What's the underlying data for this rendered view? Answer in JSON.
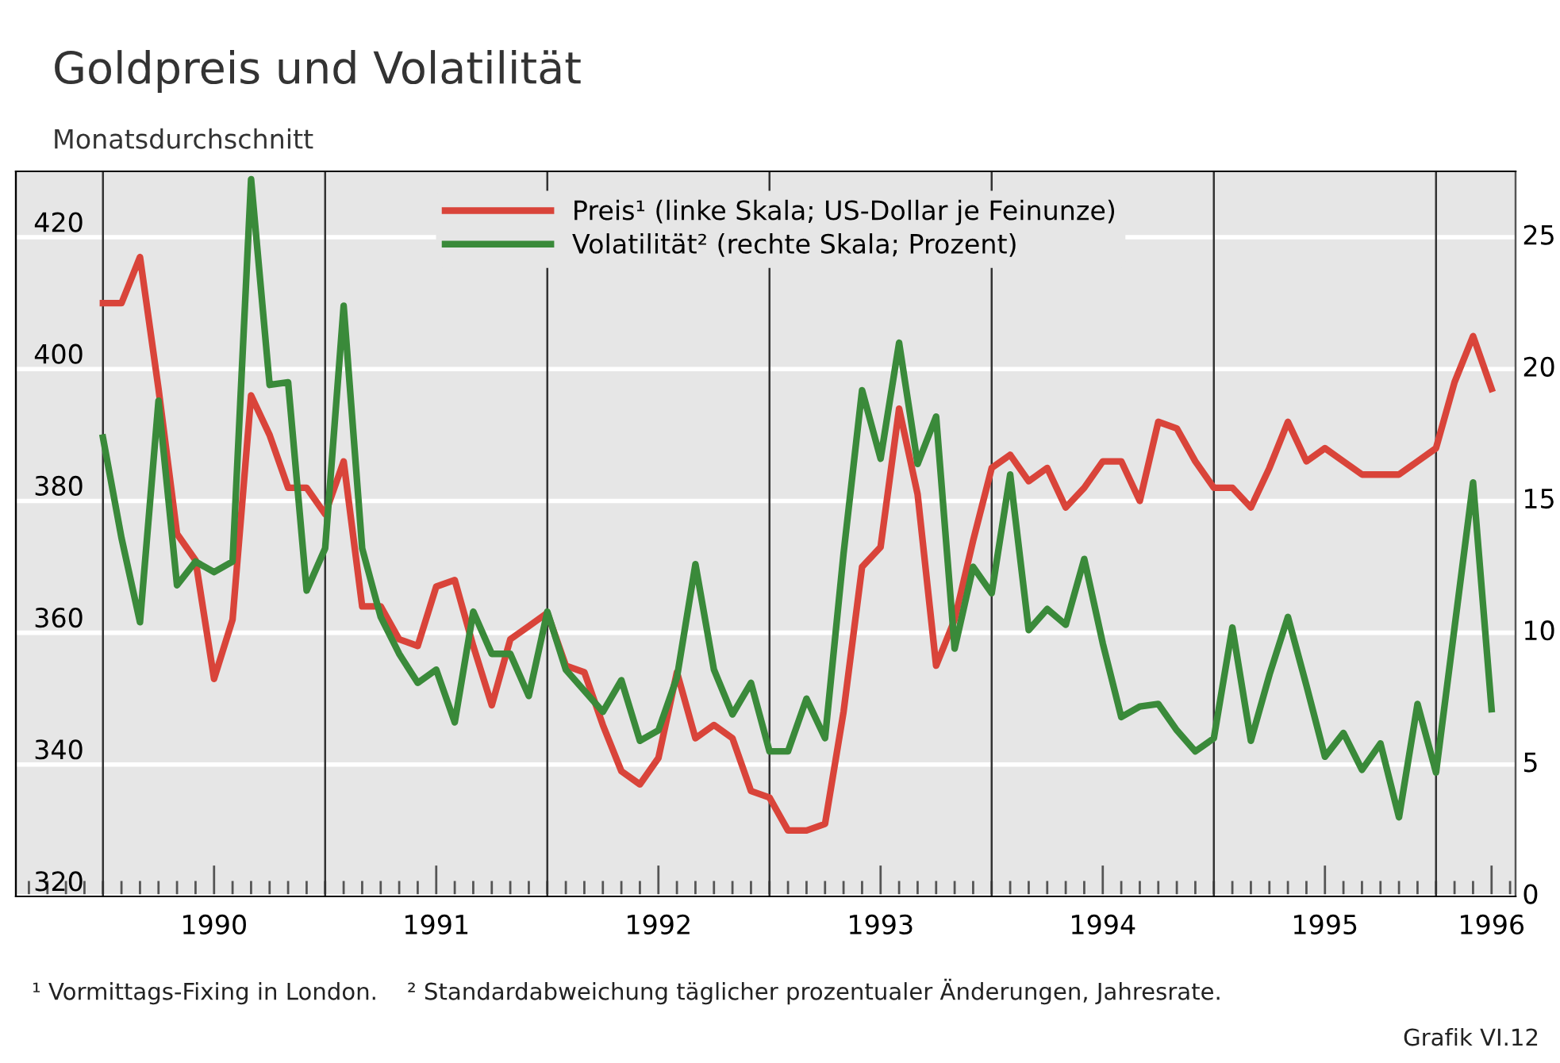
{
  "chart_data": {
    "type": "line",
    "title": "Goldpreis und Volatilität",
    "subtitle": "Monatsdurchschnitt",
    "x": [
      "1990-01",
      "1990-02",
      "1990-03",
      "1990-04",
      "1990-05",
      "1990-06",
      "1990-07",
      "1990-08",
      "1990-09",
      "1990-10",
      "1990-11",
      "1990-12",
      "1991-01",
      "1991-02",
      "1991-03",
      "1991-04",
      "1991-05",
      "1991-06",
      "1991-07",
      "1991-08",
      "1991-09",
      "1991-10",
      "1991-11",
      "1991-12",
      "1992-01",
      "1992-02",
      "1992-03",
      "1992-04",
      "1992-05",
      "1992-06",
      "1992-07",
      "1992-08",
      "1992-09",
      "1992-10",
      "1992-11",
      "1992-12",
      "1993-01",
      "1993-02",
      "1993-03",
      "1993-04",
      "1993-05",
      "1993-06",
      "1993-07",
      "1993-08",
      "1993-09",
      "1993-10",
      "1993-11",
      "1993-12",
      "1994-01",
      "1994-02",
      "1994-03",
      "1994-04",
      "1994-05",
      "1994-06",
      "1994-07",
      "1994-08",
      "1994-09",
      "1994-10",
      "1994-11",
      "1994-12",
      "1995-01",
      "1995-02",
      "1995-03",
      "1995-04",
      "1995-05",
      "1995-06",
      "1995-07",
      "1995-08",
      "1995-09",
      "1995-10",
      "1995-11",
      "1995-12",
      "1996-01",
      "1996-02",
      "1996-03",
      "1996-04"
    ],
    "series": [
      {
        "name": "Preis¹ (linke Skala; US-Dollar je Feinunze)",
        "color": "#d9443a",
        "values": [
          410,
          410,
          417,
          397,
          375,
          371,
          353,
          362,
          396,
          390,
          382,
          382,
          378,
          386,
          364,
          364,
          359,
          358,
          367,
          368,
          358,
          349,
          359,
          361,
          363,
          355,
          354,
          346,
          339,
          337,
          341,
          354,
          344,
          346,
          344,
          336,
          335,
          330,
          330,
          331,
          348,
          370,
          373,
          394,
          381,
          355,
          362,
          374,
          385,
          387,
          383,
          385,
          379,
          382,
          386,
          386,
          380,
          392,
          391,
          386,
          382,
          382,
          379,
          385,
          392,
          386,
          388,
          386,
          384,
          384,
          384,
          386,
          388,
          398,
          405,
          397
        ]
      },
      {
        "name": "Volatilität² (rechte Skala; Prozent)",
        "color": "#3a8a3a",
        "axis": "y2",
        "values": [
          17.4,
          13.6,
          10.4,
          18.8,
          11.8,
          12.7,
          12.3,
          12.7,
          27.2,
          19.4,
          19.5,
          11.6,
          13.2,
          22.4,
          13.2,
          10.6,
          9.2,
          8.1,
          8.6,
          6.6,
          10.8,
          9.2,
          9.2,
          7.6,
          10.8,
          8.6,
          7.8,
          7.0,
          8.2,
          5.9,
          6.3,
          8.3,
          12.6,
          8.6,
          6.9,
          8.1,
          5.5,
          5.5,
          7.5,
          6.0,
          13.0,
          19.2,
          16.6,
          21.0,
          16.4,
          18.2,
          9.4,
          12.5,
          11.5,
          16.0,
          10.1,
          10.9,
          10.3,
          12.8,
          9.6,
          6.8,
          7.2,
          7.3,
          6.3,
          5.5,
          6.0,
          10.2,
          5.9,
          8.4,
          10.6,
          8.0,
          5.3,
          6.2,
          4.8,
          5.8,
          3.0,
          7.3,
          4.7,
          10.2,
          15.7,
          7.1
        ]
      }
    ],
    "xlim": [
      "1989-08-10",
      "1996-05-10"
    ],
    "xticks": [
      {
        "value": "1990-07",
        "label": "1990"
      },
      {
        "value": "1991-07",
        "label": "1991"
      },
      {
        "value": "1992-07",
        "label": "1992"
      },
      {
        "value": "1993-07",
        "label": "1993"
      },
      {
        "value": "1994-07",
        "label": "1994"
      },
      {
        "value": "1995-07",
        "label": "1995"
      },
      {
        "value": "1996-04",
        "label": "1996"
      }
    ],
    "ylim": [
      320,
      430
    ],
    "yticks": [
      320,
      340,
      360,
      380,
      400,
      420
    ],
    "y2lim": [
      0,
      27.5
    ],
    "y2ticks": [
      0,
      5,
      10,
      15,
      20,
      25
    ],
    "ref_lines": [
      {
        "axis": "x",
        "value": "1990-01",
        "label": null,
        "color": "#333333"
      },
      {
        "axis": "x",
        "value": "1991-01",
        "label": null,
        "color": "#333333"
      },
      {
        "axis": "x",
        "value": "1992-01",
        "label": null,
        "color": "#333333"
      },
      {
        "axis": "x",
        "value": "1993-01",
        "label": null,
        "color": "#333333"
      },
      {
        "axis": "x",
        "value": "1994-01",
        "label": null,
        "color": "#333333"
      },
      {
        "axis": "x",
        "value": "1995-01",
        "label": null,
        "color": "#333333"
      },
      {
        "axis": "x",
        "value": "1996-01",
        "label": null,
        "color": "#333333"
      }
    ],
    "grid": "y",
    "legend": "top",
    "marker": "none",
    "line_style": "solid",
    "annotations": [
      "¹ Vormittags-Fixing in London.    ² Standardabweichung täglicher prozentualer Änderungen, Jahresrate.",
      "Grafik VI.12"
    ]
  }
}
